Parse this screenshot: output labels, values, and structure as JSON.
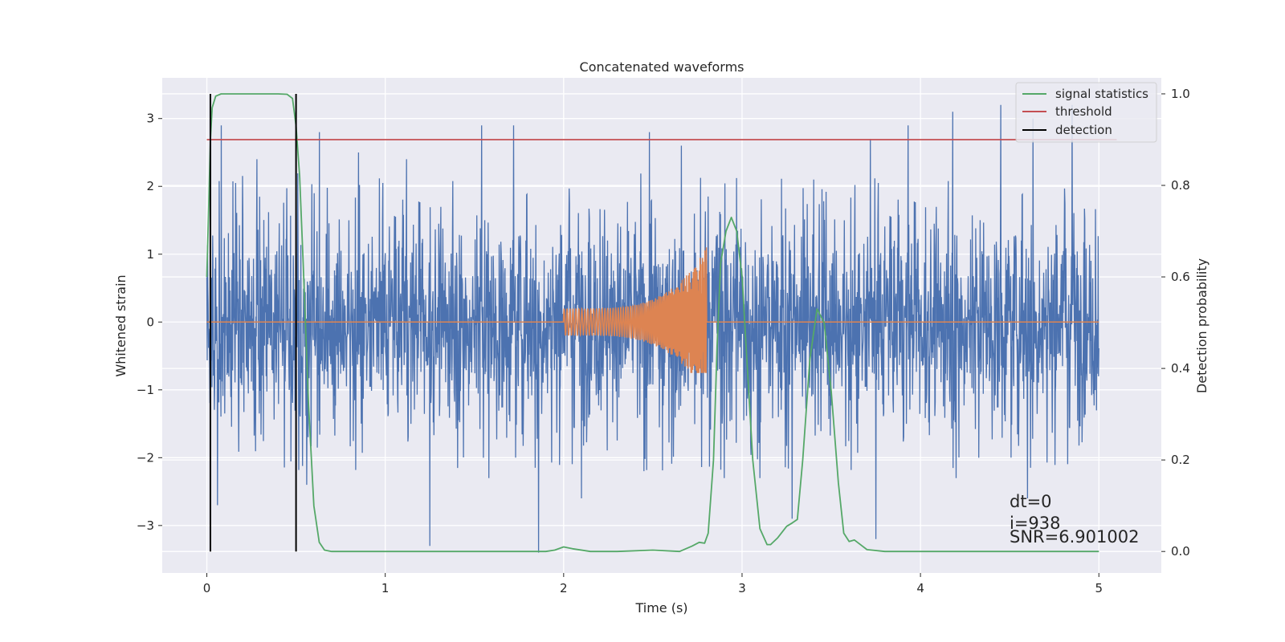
{
  "chart_data": {
    "type": "line",
    "title": "Concatenated waveforms",
    "xlabel": "Time (s)",
    "ylabel": "Whitened strain",
    "y2label": "Detection probability",
    "xlim": [
      -0.25,
      5.35
    ],
    "ylim": [
      -3.7,
      3.6
    ],
    "y2lim": [
      -0.047,
      1.035
    ],
    "x_ticks": [
      "0",
      "1",
      "2",
      "3",
      "4",
      "5"
    ],
    "y_ticks": [
      "−3",
      "−2",
      "−1",
      "0",
      "1",
      "2",
      "3"
    ],
    "y2_ticks": [
      "0.0",
      "0.2",
      "0.4",
      "0.6",
      "0.8",
      "1.0"
    ],
    "grid": true,
    "legend_position": "top-right",
    "colors": {
      "background": "#eaeaf2",
      "noise": "#4c72b0",
      "injection": "#dd8452",
      "signal_statistics": "#55a868",
      "threshold": "#c44e52",
      "detection": "#000000"
    },
    "series": [
      {
        "name": "",
        "role": "whitened strain noise",
        "axis": "left",
        "x_range": [
          0,
          5
        ],
        "envelope": {
          "core_abs": 0.7,
          "typical_peak_abs": 2.2,
          "max_abs": 3.3
        },
        "peaks": [
          {
            "x": 0.08,
            "y": 2.9
          },
          {
            "x": 0.28,
            "y": 2.4
          },
          {
            "x": 0.63,
            "y": 2.8
          },
          {
            "x": 0.85,
            "y": 2.5
          },
          {
            "x": 1.12,
            "y": 2.4
          },
          {
            "x": 1.54,
            "y": 2.9
          },
          {
            "x": 1.72,
            "y": 2.9
          },
          {
            "x": 2.48,
            "y": 2.8
          },
          {
            "x": 2.66,
            "y": 2.6
          },
          {
            "x": 2.9,
            "y": 2.6
          },
          {
            "x": 3.72,
            "y": 2.7
          },
          {
            "x": 3.93,
            "y": 2.9
          },
          {
            "x": 4.18,
            "y": 3.1
          },
          {
            "x": 4.45,
            "y": 3.2
          },
          {
            "x": 4.63,
            "y": 3.0
          },
          {
            "x": 4.85,
            "y": 3.2
          }
        ],
        "troughs": [
          {
            "x": 0.06,
            "y": -2.7
          },
          {
            "x": 0.56,
            "y": -2.4
          },
          {
            "x": 1.25,
            "y": -3.3
          },
          {
            "x": 1.58,
            "y": -2.3
          },
          {
            "x": 1.86,
            "y": -3.4
          },
          {
            "x": 2.1,
            "y": -2.6
          },
          {
            "x": 2.9,
            "y": -2.3
          },
          {
            "x": 3.1,
            "y": -2.3
          },
          {
            "x": 3.28,
            "y": -2.9
          },
          {
            "x": 3.75,
            "y": -3.2
          },
          {
            "x": 4.2,
            "y": -2.3
          },
          {
            "x": 4.6,
            "y": -2.6
          }
        ]
      },
      {
        "name": "",
        "role": "injected chirp",
        "axis": "left",
        "x_range": [
          0,
          5
        ],
        "chirp_start": 2.0,
        "chirp_end": 2.8,
        "start_amplitude": 0.2,
        "peak_amplitude": 1.1,
        "peak_trough": -0.75
      },
      {
        "name": "signal statistics",
        "axis": "right",
        "x": [
          0,
          0.01,
          0.02,
          0.03,
          0.05,
          0.08,
          0.12,
          0.2,
          0.3,
          0.4,
          0.45,
          0.48,
          0.5,
          0.52,
          0.54,
          0.57,
          0.6,
          0.63,
          0.66,
          0.7,
          0.8,
          1.0,
          1.5,
          1.8,
          1.9,
          1.95,
          2.0,
          2.05,
          2.15,
          2.3,
          2.5,
          2.65,
          2.72,
          2.76,
          2.79,
          2.81,
          2.84,
          2.86,
          2.88,
          2.91,
          2.94,
          2.97,
          3.0,
          3.03,
          3.06,
          3.1,
          3.14,
          3.16,
          3.2,
          3.25,
          3.28,
          3.31,
          3.34,
          3.38,
          3.42,
          3.46,
          3.5,
          3.54,
          3.57,
          3.6,
          3.63,
          3.66,
          3.7,
          3.8,
          4.0,
          4.5,
          5.0
        ],
        "y": [
          0.6,
          0.75,
          0.9,
          0.97,
          0.995,
          1.0,
          1.0,
          1.0,
          1.0,
          1.0,
          0.999,
          0.99,
          0.93,
          0.82,
          0.63,
          0.32,
          0.1,
          0.02,
          0.003,
          0.0,
          0.0,
          0.0,
          0.0,
          0.0,
          0.0,
          0.003,
          0.01,
          0.006,
          0.0,
          0.0,
          0.003,
          0.0,
          0.012,
          0.02,
          0.018,
          0.04,
          0.2,
          0.45,
          0.63,
          0.7,
          0.73,
          0.7,
          0.6,
          0.4,
          0.2,
          0.05,
          0.015,
          0.015,
          0.03,
          0.055,
          0.062,
          0.07,
          0.2,
          0.42,
          0.53,
          0.5,
          0.35,
          0.15,
          0.04,
          0.022,
          0.025,
          0.016,
          0.004,
          0.0,
          0.0,
          0.0,
          0.0
        ]
      },
      {
        "name": "threshold",
        "axis": "right",
        "x": [
          0,
          5.1
        ],
        "y": [
          0.9,
          0.9
        ]
      },
      {
        "name": "detection",
        "axis": "right",
        "x": [
          0.02,
          0.5
        ],
        "y": [
          0,
          1
        ]
      }
    ],
    "legend": [
      "signal statistics",
      "threshold",
      "detection"
    ],
    "annotations": [
      "dt=0",
      "i=938",
      "SNR=6.901002"
    ]
  }
}
